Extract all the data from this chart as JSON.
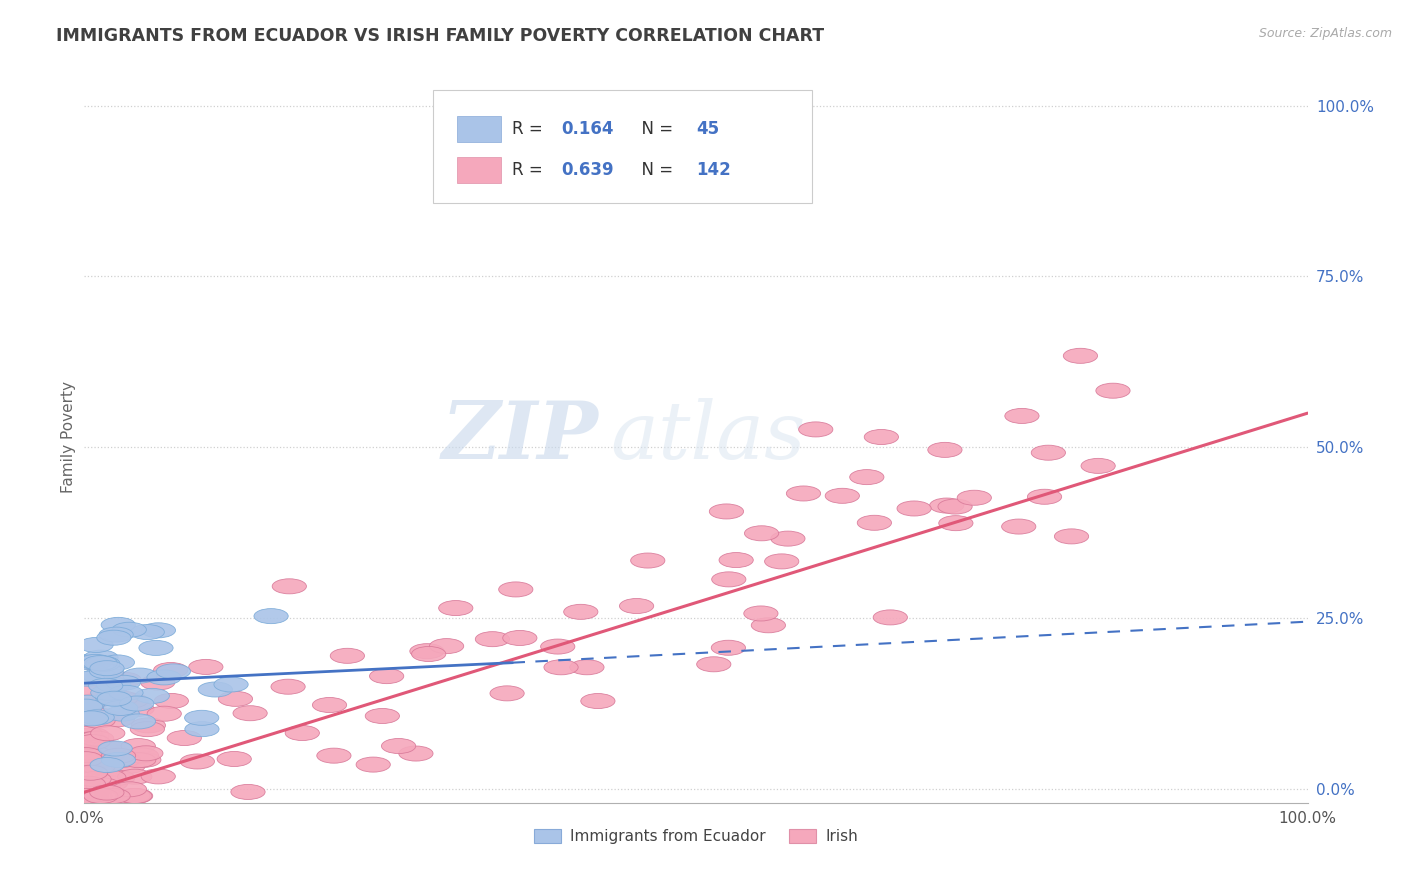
{
  "title": "IMMIGRANTS FROM ECUADOR VS IRISH FAMILY POVERTY CORRELATION CHART",
  "source": "Source: ZipAtlas.com",
  "ylabel": "Family Poverty",
  "watermark_zip": "ZIP",
  "watermark_atlas": "atlas",
  "legend_ecuador": "Immigrants from Ecuador",
  "legend_irish": "Irish",
  "ecuador_R": "0.164",
  "ecuador_N": "45",
  "irish_R": "0.639",
  "irish_N": "142",
  "ecuador_color": "#aac4e8",
  "irish_color": "#f5a8bc",
  "ecuador_line_color": "#4472c4",
  "irish_line_color": "#e05878",
  "label_color": "#4472c4",
  "title_color": "#404040",
  "grid_color": "#d0d0d0",
  "bg_color": "#ffffff",
  "xlim": [
    0,
    1.0
  ],
  "ylim": [
    -0.02,
    1.05
  ]
}
